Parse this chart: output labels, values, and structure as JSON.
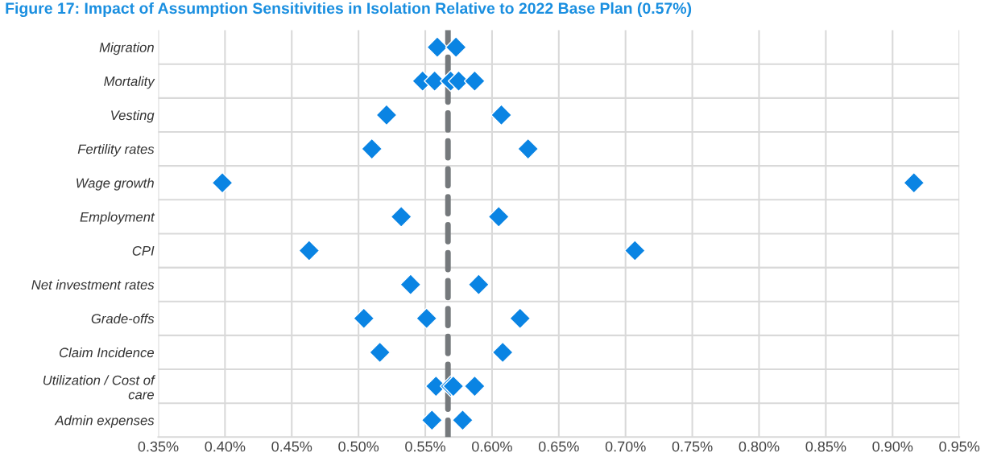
{
  "chart_data": {
    "type": "scatter",
    "orientation": "horizontal",
    "title": "Figure 17: Impact of Assumption Sensitivities in Isolation Relative to 2022 Base Plan (0.57%)",
    "categories": [
      "Migration",
      "Mortality",
      "Vesting",
      "Fertility rates",
      "Wage growth",
      "Employment",
      "CPI",
      "Net investment rates",
      "Grade-offs",
      "Claim Incidence",
      "Utilization / Cost of\ncare",
      "Admin expenses"
    ],
    "series": [
      {
        "color": "#0a84e3",
        "values": [
          0.559,
          0.548,
          0.521,
          0.51,
          0.398,
          0.532,
          0.463,
          0.539,
          0.504,
          0.516,
          0.558,
          0.555
        ]
      },
      {
        "color": "#0a84e3",
        "values": [
          0.573,
          0.557,
          0.607,
          0.627,
          0.916,
          0.605,
          0.707,
          0.59,
          0.551,
          0.608,
          0.569,
          0.578
        ]
      },
      {
        "color": "#0a84e3",
        "values": [
          null,
          0.569,
          null,
          null,
          null,
          null,
          null,
          null,
          0.621,
          null,
          0.571,
          null
        ]
      },
      {
        "color": "#0a84e3",
        "values": [
          null,
          0.575,
          null,
          null,
          null,
          null,
          null,
          null,
          null,
          null,
          0.587,
          null
        ]
      },
      {
        "color": "#0a84e3",
        "values": [
          null,
          0.587,
          null,
          null,
          null,
          null,
          null,
          null,
          null,
          null,
          null,
          null
        ]
      }
    ],
    "marker": "diamond",
    "xlim": [
      0.35,
      0.95
    ],
    "xticks": [
      {
        "value": 0.35,
        "label": "0.35%"
      },
      {
        "value": 0.4,
        "label": "0.40%"
      },
      {
        "value": 0.45,
        "label": "0.45%"
      },
      {
        "value": 0.5,
        "label": "0.50%"
      },
      {
        "value": 0.55,
        "label": "0.55%"
      },
      {
        "value": 0.6,
        "label": "0.60%"
      },
      {
        "value": 0.65,
        "label": "0.65%"
      },
      {
        "value": 0.7,
        "label": "0.70%"
      },
      {
        "value": 0.75,
        "label": "0.75%"
      },
      {
        "value": 0.8,
        "label": "0.80%"
      },
      {
        "value": 0.85,
        "label": "0.85%"
      },
      {
        "value": 0.9,
        "label": "0.90%"
      },
      {
        "value": 0.95,
        "label": "0.95%"
      }
    ],
    "ref_lines": [
      {
        "axis": "x",
        "value": 0.567,
        "color": "#75797c",
        "line_style": "dashed"
      }
    ],
    "grid": true
  }
}
